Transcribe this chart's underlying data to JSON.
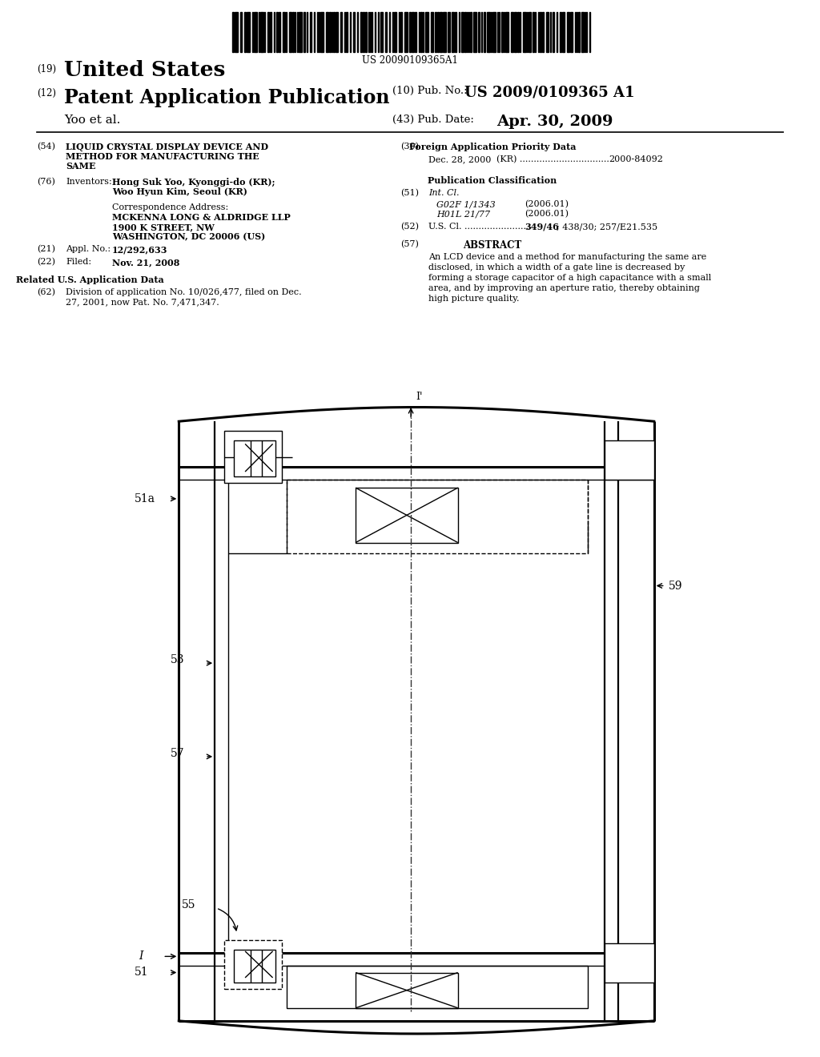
{
  "bg_color": "#ffffff",
  "barcode_text": "US 20090109365A1",
  "title19": "United States",
  "title12": "Patent Application Publication",
  "pubno": "US 2009/0109365 A1",
  "authors": "Yoo et al.",
  "pubdate": "Apr. 30, 2009"
}
